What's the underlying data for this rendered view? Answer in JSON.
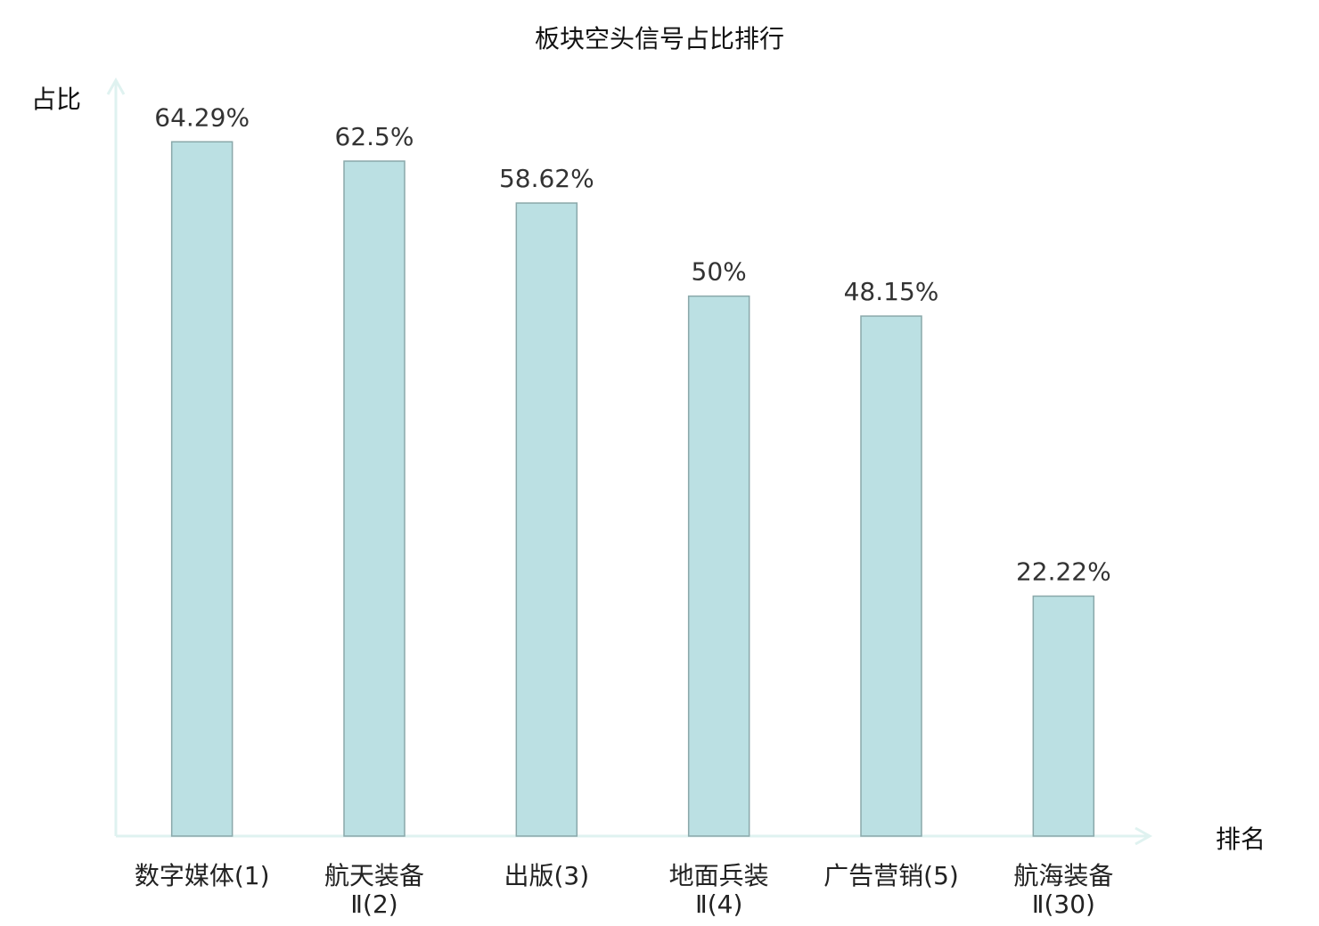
{
  "chart_data": {
    "type": "bar",
    "title": "板块空头信号占比排行",
    "xlabel": "排名",
    "ylabel": "占比",
    "categories": [
      [
        "数字媒体(1)"
      ],
      [
        "航天装备",
        "Ⅱ(2)"
      ],
      [
        "出版(3)"
      ],
      [
        "地面兵装",
        "Ⅱ(4)"
      ],
      [
        "广告营销(5)"
      ],
      [
        "航海装备",
        "Ⅱ(30)"
      ]
    ],
    "values": [
      64.29,
      62.5,
      58.62,
      50,
      48.15,
      22.22
    ],
    "data_labels": [
      "64.29%",
      "62.5%",
      "58.62%",
      "50%",
      "48.15%",
      "22.22%"
    ],
    "highlight_index": 5,
    "ylim": [
      0,
      70
    ],
    "grid": false,
    "colors": {
      "bar_fill": "#bbe0e3",
      "bar_stroke": "#8aa8aa",
      "axis": "#dff2f0",
      "highlight_label": "#e81010",
      "label": "#222222"
    }
  }
}
